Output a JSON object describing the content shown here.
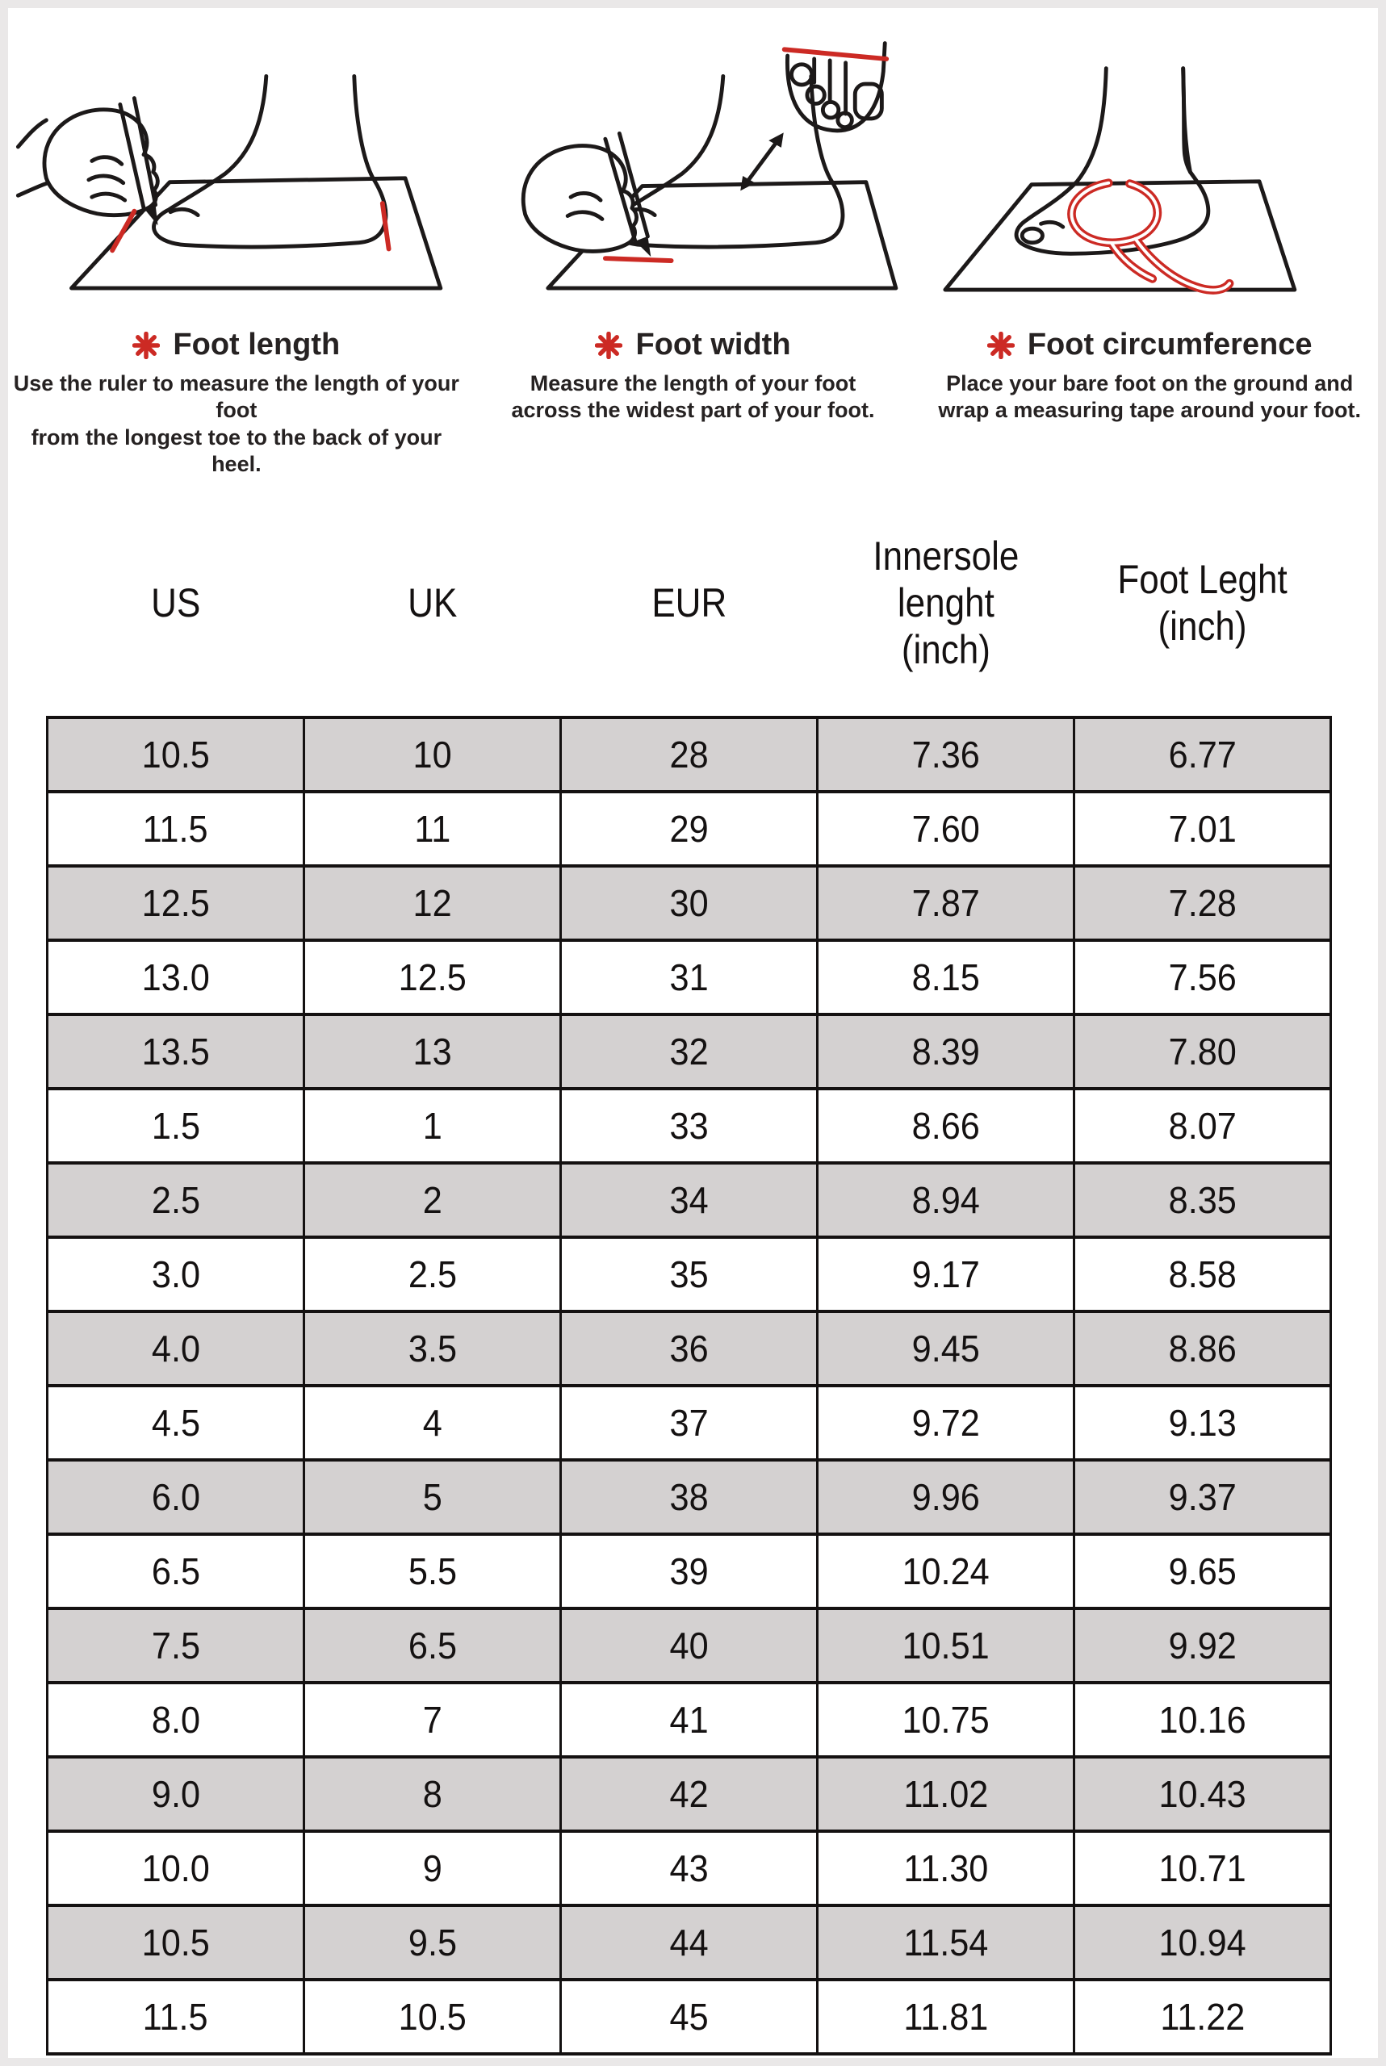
{
  "colors": {
    "accent_red": "#cc2a24",
    "stripe_gray": "#d4d1d1",
    "ink_black": "#1c1919",
    "frame_gray": "#eae8e8"
  },
  "instructions": [
    {
      "icon": "red-asterisk",
      "title": "Foot length",
      "description": "Use the ruler to measure the length of your foot\nfrom the longest toe to the back of your heel."
    },
    {
      "icon": "red-asterisk",
      "title": "Foot width",
      "description": "Measure the length of your foot\nacross the widest part of your foot."
    },
    {
      "icon": "red-asterisk",
      "title": "Foot circumference",
      "description": "Place your bare foot on the ground and\nwrap a measuring tape around your foot."
    }
  ],
  "size_table": {
    "columns": [
      "US",
      "UK",
      "EUR",
      "Innersole\nlenght\n(inch)",
      "Foot Leght\n(inch)"
    ],
    "first_row_shaded": true,
    "rows": [
      [
        "10.5",
        "10",
        "28",
        "7.36",
        "6.77"
      ],
      [
        "11.5",
        "11",
        "29",
        "7.60",
        "7.01"
      ],
      [
        "12.5",
        "12",
        "30",
        "7.87",
        "7.28"
      ],
      [
        "13.0",
        "12.5",
        "31",
        "8.15",
        "7.56"
      ],
      [
        "13.5",
        "13",
        "32",
        "8.39",
        "7.80"
      ],
      [
        "1.5",
        "1",
        "33",
        "8.66",
        "8.07"
      ],
      [
        "2.5",
        "2",
        "34",
        "8.94",
        "8.35"
      ],
      [
        "3.0",
        "2.5",
        "35",
        "9.17",
        "8.58"
      ],
      [
        "4.0",
        "3.5",
        "36",
        "9.45",
        "8.86"
      ],
      [
        "4.5",
        "4",
        "37",
        "9.72",
        "9.13"
      ],
      [
        "6.0",
        "5",
        "38",
        "9.96",
        "9.37"
      ],
      [
        "6.5",
        "5.5",
        "39",
        "10.24",
        "9.65"
      ],
      [
        "7.5",
        "6.5",
        "40",
        "10.51",
        "9.92"
      ],
      [
        "8.0",
        "7",
        "41",
        "10.75",
        "10.16"
      ],
      [
        "9.0",
        "8",
        "42",
        "11.02",
        "10.43"
      ],
      [
        "10.0",
        "9",
        "43",
        "11.30",
        "10.71"
      ],
      [
        "10.5",
        "9.5",
        "44",
        "11.54",
        "10.94"
      ],
      [
        "11.5",
        "10.5",
        "45",
        "11.81",
        "11.22"
      ]
    ]
  }
}
